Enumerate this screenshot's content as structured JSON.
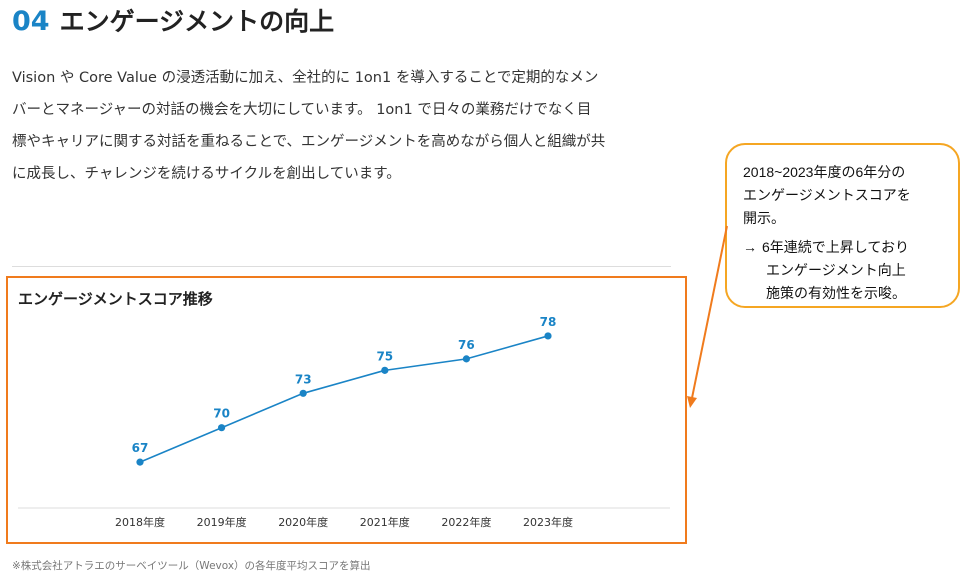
{
  "heading": {
    "number": "04",
    "title": "エンゲージメントの向上"
  },
  "intro": {
    "lines": [
      "Vision や Core Value の浸透活動に加え、全社的に 1on1 を導入することで定期的なメン",
      "バーとマネージャーの対話の機会を大切にしています。 1on1 で日々の業務だけでなく目",
      "標やキャリアに関する対話を重ねることで、エンゲージメントを高めながら個人と組織が共",
      "に成長し、チャレンジを続けるサイクルを創出しています。"
    ]
  },
  "chart_data": {
    "type": "line",
    "title": "エンゲージメントスコア推移",
    "categories": [
      "2018年度",
      "2019年度",
      "2020年度",
      "2021年度",
      "2022年度",
      "2023年度"
    ],
    "values": [
      67,
      70,
      73,
      75,
      76,
      78
    ],
    "data_labels": [
      "67",
      "70",
      "73",
      "75",
      "76",
      "78"
    ],
    "xlabel": "",
    "ylabel": "",
    "ylim": [
      63,
      80
    ],
    "grid": false,
    "legend": "none",
    "line_color": "#1a84c6"
  },
  "footnote": "※株式会社アトラエのサーベイツール（Wevox）の各年度平均スコアを算出",
  "callout": {
    "line1": "2018~2023年度の6年分の",
    "line2": "エンゲージメントスコアを",
    "line3": "開示。",
    "arrow": "→",
    "line4": "6年連続で上昇しており",
    "line5": "エンゲージメント向上",
    "line6": "施策の有効性を示唆。",
    "border_color": "#f5a623"
  },
  "colors": {
    "accent": "#1a84c6",
    "highlight": "#f07b1d",
    "text": "#222222"
  }
}
